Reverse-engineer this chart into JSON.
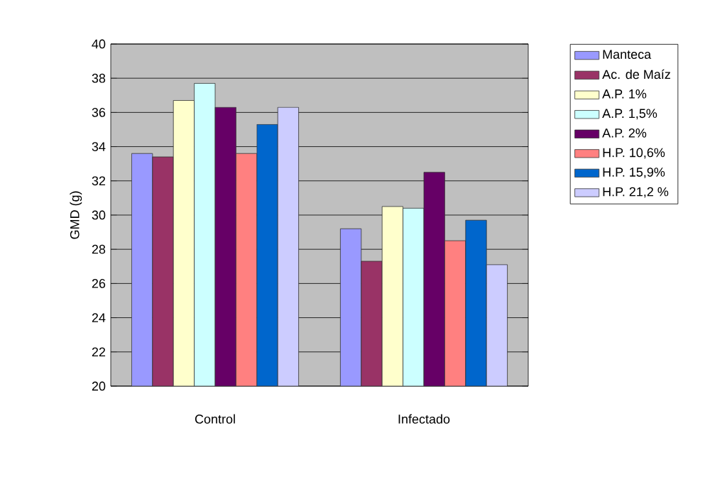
{
  "chart_data": {
    "type": "bar",
    "ylabel": "GMD (g)",
    "categories": [
      "Control",
      "Infectado"
    ],
    "series": [
      {
        "name": "Manteca",
        "color": "#9999ff",
        "values": [
          33.6,
          29.2
        ]
      },
      {
        "name": "Ac. de Maíz",
        "color": "#993366",
        "values": [
          33.4,
          27.3
        ]
      },
      {
        "name": "A.P. 1%",
        "color": "#ffffcc",
        "values": [
          36.7,
          30.5
        ]
      },
      {
        "name": "A.P. 1,5%",
        "color": "#ccffff",
        "values": [
          37.7,
          30.4
        ]
      },
      {
        "name": "A.P. 2%",
        "color": "#660066",
        "values": [
          36.3,
          32.5
        ]
      },
      {
        "name": "H.P. 10,6%",
        "color": "#ff8080",
        "values": [
          33.6,
          28.5
        ]
      },
      {
        "name": "H.P. 15,9%",
        "color": "#0066cc",
        "values": [
          35.3,
          29.7
        ]
      },
      {
        "name": "H.P. 21,2 %",
        "color": "#ccccff",
        "values": [
          36.3,
          27.1
        ]
      }
    ],
    "ylim": [
      20,
      40
    ],
    "yticks": [
      20,
      22,
      24,
      26,
      28,
      30,
      32,
      34,
      36,
      38,
      40
    ],
    "grid": "y",
    "legend": "right"
  }
}
